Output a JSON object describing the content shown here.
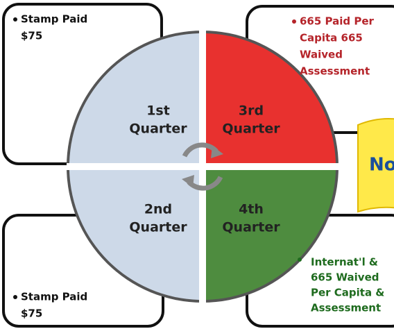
{
  "boxes": [
    {
      "lines": [
        "Stamp Paid",
        "$75"
      ]
    },
    {
      "lines": [
        "665 Paid Per",
        "Capita 665",
        "Waived",
        "Assessment"
      ]
    },
    {
      "lines": [
        "Stamp Paid",
        "$75"
      ]
    },
    {
      "lines": [
        "Internat'l &",
        "665 Waived",
        "Per Capita &",
        "Assessment"
      ]
    }
  ],
  "quadrants": [
    {
      "lines": [
        "1st",
        "Quarter"
      ]
    },
    {
      "lines": [
        "3rd",
        "Quarter"
      ]
    },
    {
      "lines": [
        "2nd",
        "Quarter"
      ]
    },
    {
      "lines": [
        "4th",
        "Quarter"
      ]
    }
  ],
  "tab": {
    "label": "No"
  }
}
